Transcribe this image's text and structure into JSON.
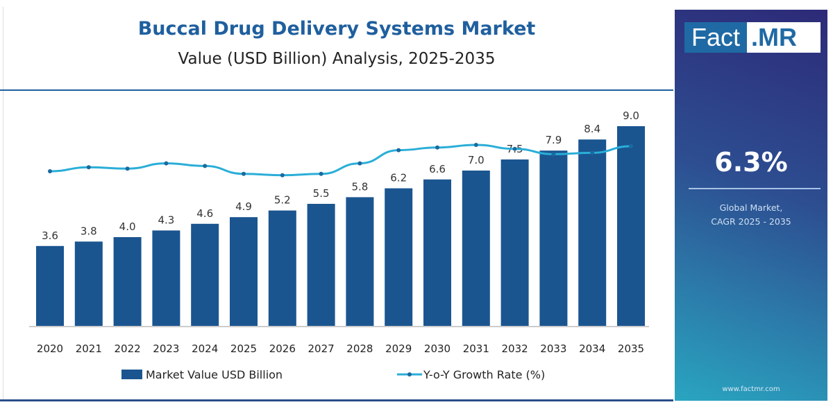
{
  "chart_data": {
    "type": "bar",
    "title": "Buccal Drug Delivery Systems Market",
    "subtitle": "Value (USD Billion) Analysis, 2025-2035",
    "categories": [
      "2020",
      "2021",
      "2022",
      "2023",
      "2024",
      "2025",
      "2026",
      "2027",
      "2028",
      "2029",
      "2030",
      "2031",
      "2032",
      "2033",
      "2034",
      "2035"
    ],
    "series": [
      {
        "name": "Market Value USD Billion",
        "type": "bar",
        "color": "#1a5590",
        "values": [
          3.6,
          3.8,
          4.0,
          4.3,
          4.6,
          4.9,
          5.2,
          5.5,
          5.8,
          6.2,
          6.6,
          7.0,
          7.5,
          7.9,
          8.4,
          9.0
        ]
      },
      {
        "name": "Y-o-Y Growth Rate (%)",
        "type": "line",
        "color": "#2aaed8",
        "values": [
          5.5,
          5.8,
          5.7,
          6.1,
          5.9,
          5.3,
          5.2,
          5.3,
          6.1,
          7.1,
          7.3,
          7.5,
          7.2,
          6.8,
          6.9,
          7.4
        ]
      }
    ],
    "data_labels": [
      "3.6",
      "3.8",
      "4.0",
      "4.3",
      "4.6",
      "4.9",
      "5.2",
      "5.5",
      "5.8",
      "6.2",
      "6.6",
      "7.0",
      "7.5",
      "7.9",
      "8.4",
      "9.0"
    ],
    "ylim": [
      0,
      9.0
    ],
    "grid": false,
    "legend": "bottom"
  },
  "panel": {
    "logo_left": "Fact",
    "logo_right": ".MR",
    "cagr": "6.3%",
    "label_line1": "Global Market,",
    "label_line2": "CAGR 2025 - 2035",
    "url": "www.factmr.com"
  }
}
